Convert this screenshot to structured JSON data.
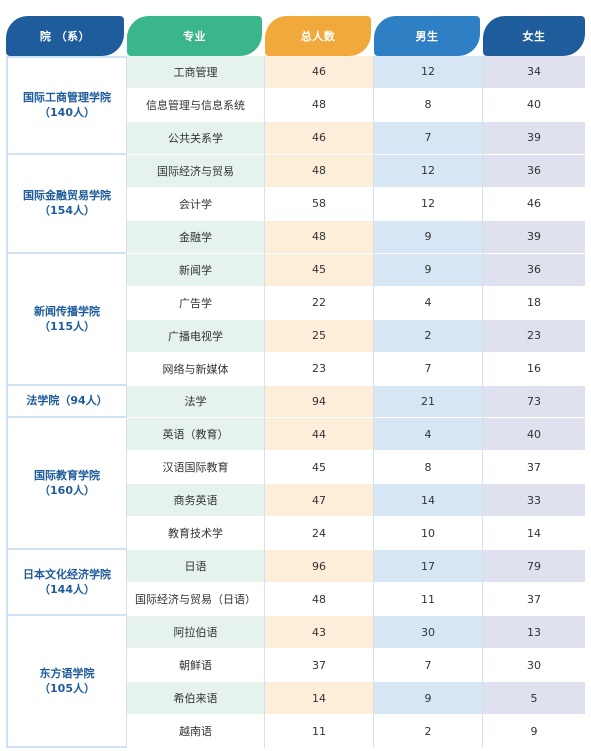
{
  "headers": {
    "dept": "院 （系）",
    "major": "专业",
    "total": "总人数",
    "male": "男生",
    "female": "女生"
  },
  "colors": {
    "dept_header": "#1f5c9c",
    "major_header": "#3bb58a",
    "total_header": "#f2a93b",
    "male_header": "#2f7fc4",
    "female_header": "#1f5c9c",
    "dept_text": "#1f5c9c",
    "row_shade_major": "#e5f3ec",
    "row_shade_total": "#fdeeda",
    "row_shade_male": "#d6e6f5",
    "row_shade_female": "#dfe1ef"
  },
  "departments": [
    {
      "name": "国际工商管理学院",
      "count": "（140人）",
      "rows": [
        {
          "major": "工商管理",
          "total": "46",
          "male": "12",
          "female": "34"
        },
        {
          "major": "信息管理与信息系统",
          "total": "48",
          "male": "8",
          "female": "40"
        },
        {
          "major": "公共关系学",
          "total": "46",
          "male": "7",
          "female": "39"
        }
      ]
    },
    {
      "name": "国际金融贸易学院",
      "count": "（154人）",
      "rows": [
        {
          "major": "国际经济与贸易",
          "total": "48",
          "male": "12",
          "female": "36"
        },
        {
          "major": "会计学",
          "total": "58",
          "male": "12",
          "female": "46"
        },
        {
          "major": "金融学",
          "total": "48",
          "male": "9",
          "female": "39"
        }
      ]
    },
    {
      "name": "新闻传播学院",
      "count": "（115人）",
      "rows": [
        {
          "major": "新闻学",
          "total": "45",
          "male": "9",
          "female": "36"
        },
        {
          "major": "广告学",
          "total": "22",
          "male": "4",
          "female": "18"
        },
        {
          "major": "广播电视学",
          "total": "25",
          "male": "2",
          "female": "23"
        },
        {
          "major": "网络与新媒体",
          "total": "23",
          "male": "7",
          "female": "16"
        }
      ]
    },
    {
      "name": "法学院（94人）",
      "count": "",
      "rows": [
        {
          "major": "法学",
          "total": "94",
          "male": "21",
          "female": "73"
        }
      ]
    },
    {
      "name": "国际教育学院",
      "count": "（160人）",
      "rows": [
        {
          "major": "英语（教育）",
          "total": "44",
          "male": "4",
          "female": "40"
        },
        {
          "major": "汉语国际教育",
          "total": "45",
          "male": "8",
          "female": "37"
        },
        {
          "major": "商务英语",
          "total": "47",
          "male": "14",
          "female": "33"
        },
        {
          "major": "教育技术学",
          "total": "24",
          "male": "10",
          "female": "14"
        }
      ]
    },
    {
      "name": "日本文化经济学院",
      "count": "（144人）",
      "rows": [
        {
          "major": "日语",
          "total": "96",
          "male": "17",
          "female": "79"
        },
        {
          "major": "国际经济与贸易（日语）",
          "total": "48",
          "male": "11",
          "female": "37"
        }
      ]
    },
    {
      "name": "东方语学院",
      "count": "（105人）",
      "rows": [
        {
          "major": "阿拉伯语",
          "total": "43",
          "male": "30",
          "female": "13"
        },
        {
          "major": "朝鲜语",
          "total": "37",
          "male": "7",
          "female": "30"
        },
        {
          "major": "希伯来语",
          "total": "14",
          "male": "9",
          "female": "5"
        },
        {
          "major": "越南语",
          "total": "11",
          "male": "2",
          "female": "9"
        }
      ]
    }
  ]
}
